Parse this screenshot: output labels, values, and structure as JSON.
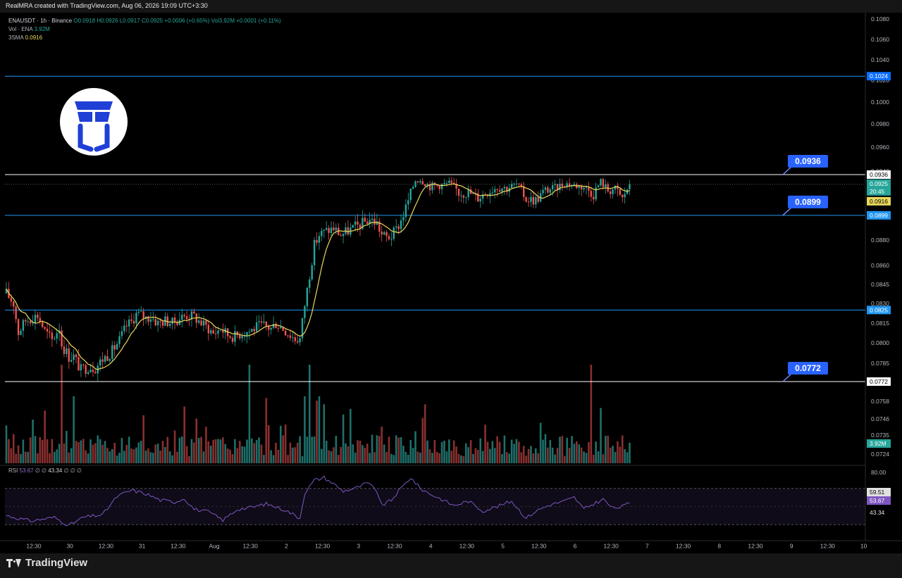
{
  "header": {
    "caption": "RealMRA created with TradingView.com, Aug 06, 2026 19:09 UTC+3:30"
  },
  "legend": {
    "symbol": "ENAUSDT · 1h · Binance",
    "ohlc": "O0.0918 H0.0926 L0.0917 C0.0925 +0.0006 (+0.65%)",
    "vol_summary": "Vol3.92M +0.0001 (+0.11%)",
    "vol_label": "Vol · ENA",
    "vol_value": "3.92M",
    "sma_label": "3SMA",
    "sma_value": "0.0916",
    "rsi_label": "RSI",
    "rsi_value": "53.67",
    "rsi_null1": "∅ ∅",
    "rsi_sma": "43.34",
    "rsi_null2": "∅ ∅ ∅"
  },
  "price_callouts": [
    "0.0936",
    "0.0899",
    "0.0772"
  ],
  "axis_badges": {
    "resistance_top": "0.1024",
    "resistance": "0.0936",
    "last_price": "0.0925",
    "countdown": "20:45",
    "sma": "0.0916",
    "support": "0.0899",
    "support_mid": "0.0825",
    "support_low": "0.0772",
    "volume": "3.92M",
    "rsi_upper": "59.51",
    "rsi_value": "53.67",
    "rsi_lower": "43.34",
    "rsi_top": "80.00"
  },
  "footer": {
    "brand": "TradingView"
  },
  "colors": {
    "up": "#26a69a",
    "down": "#ef5350",
    "sma": "#e8d85c",
    "rsi": "#7e57c2",
    "callout": "#2962ff",
    "support_line": "#2196f3",
    "resistance_line": "#ffffff"
  },
  "icons": {
    "logo": "cube-logo-icon",
    "brand": "tradingview-logo-icon"
  },
  "chart_data": {
    "type": "candlestick",
    "symbol": "ENAUSDT",
    "interval": "1h",
    "exchange": "Binance",
    "y_ticks": [
      "0.1080",
      "0.1060",
      "0.1040",
      "0.1020",
      "0.1000",
      "0.0980",
      "0.0960",
      "0.0940",
      "0.0920",
      "0.0900",
      "0.0880",
      "0.0860",
      "0.0845",
      "0.0830",
      "0.0815",
      "0.0800",
      "0.0785",
      "0.0772",
      "0.0758",
      "0.0746",
      "0.0735",
      "0.0724"
    ],
    "x_ticks": [
      "12:30",
      "30",
      "12:30",
      "31",
      "12:30",
      "Aug",
      "12:30",
      "2",
      "12:30",
      "3",
      "12:30",
      "4",
      "12:30",
      "5",
      "12:30",
      "6",
      "12:30",
      "7",
      "12:30",
      "8",
      "12:30",
      "9",
      "12:30",
      "10"
    ],
    "price_anchors": [
      [
        0,
        0.0838
      ],
      [
        3,
        0.083
      ],
      [
        5,
        0.0808
      ],
      [
        8,
        0.0817
      ],
      [
        13,
        0.0821
      ],
      [
        16,
        0.0809
      ],
      [
        19,
        0.0802
      ],
      [
        22,
        0.0812
      ],
      [
        23,
        0.0799
      ],
      [
        26,
        0.079
      ],
      [
        28,
        0.079
      ],
      [
        31,
        0.078
      ],
      [
        34,
        0.0783
      ],
      [
        37,
        0.0782
      ],
      [
        40,
        0.0788
      ],
      [
        44,
        0.0794
      ],
      [
        47,
        0.0802
      ],
      [
        50,
        0.0813
      ],
      [
        52,
        0.0816
      ],
      [
        54,
        0.0822
      ],
      [
        56,
        0.0821
      ],
      [
        58,
        0.0819
      ],
      [
        60,
        0.082
      ],
      [
        63,
        0.0815
      ],
      [
        66,
        0.0817
      ],
      [
        69,
        0.0815
      ],
      [
        72,
        0.0819
      ],
      [
        75,
        0.0821
      ],
      [
        78,
        0.082
      ],
      [
        81,
        0.0815
      ],
      [
        84,
        0.0811
      ],
      [
        86,
        0.0807
      ],
      [
        89,
        0.0811
      ],
      [
        92,
        0.0806
      ],
      [
        95,
        0.0805
      ],
      [
        98,
        0.0808
      ],
      [
        101,
        0.0809
      ],
      [
        104,
        0.0812
      ],
      [
        107,
        0.0813
      ],
      [
        110,
        0.0811
      ],
      [
        112,
        0.0815
      ],
      [
        115,
        0.0811
      ],
      [
        118,
        0.0806
      ],
      [
        120,
        0.0803
      ],
      [
        122,
        0.0803
      ],
      [
        124,
        0.0829
      ],
      [
        126,
        0.0853
      ],
      [
        128,
        0.0876
      ],
      [
        130,
        0.0884
      ],
      [
        133,
        0.0887
      ],
      [
        136,
        0.0889
      ],
      [
        139,
        0.0884
      ],
      [
        142,
        0.0887
      ],
      [
        145,
        0.089
      ],
      [
        148,
        0.0893
      ],
      [
        151,
        0.0896
      ],
      [
        154,
        0.0893
      ],
      [
        156,
        0.0884
      ],
      [
        158,
        0.0882
      ],
      [
        160,
        0.0883
      ],
      [
        162,
        0.0888
      ],
      [
        164,
        0.0895
      ],
      [
        166,
        0.0905
      ],
      [
        168,
        0.0916
      ],
      [
        170,
        0.093
      ],
      [
        172,
        0.0931
      ],
      [
        174,
        0.0927
      ],
      [
        176,
        0.0923
      ],
      [
        180,
        0.0924
      ],
      [
        184,
        0.0926
      ],
      [
        188,
        0.0917
      ],
      [
        192,
        0.0917
      ],
      [
        196,
        0.0913
      ],
      [
        200,
        0.0918
      ],
      [
        204,
        0.0922
      ],
      [
        208,
        0.0921
      ],
      [
        212,
        0.0925
      ],
      [
        216,
        0.0912
      ],
      [
        220,
        0.0911
      ],
      [
        224,
        0.0919
      ],
      [
        228,
        0.0921
      ],
      [
        232,
        0.0926
      ],
      [
        236,
        0.0924
      ],
      [
        240,
        0.0922
      ],
      [
        244,
        0.0916
      ],
      [
        247,
        0.0928
      ],
      [
        250,
        0.0919
      ],
      [
        253,
        0.092
      ],
      [
        256,
        0.0912
      ],
      [
        259,
        0.0925
      ]
    ],
    "last_close": 0.0925,
    "sma_period": 3,
    "horizontal_levels": [
      0.1024,
      0.0936,
      0.0899,
      0.0825,
      0.0772
    ],
    "volume_last": "3.92M",
    "rsi_levels": [
      70,
      30
    ],
    "rsi_last": 53.67,
    "rsi_sma_last": 43.34,
    "rsi_anchors": [
      [
        0,
        40
      ],
      [
        10,
        34
      ],
      [
        20,
        38
      ],
      [
        26,
        29
      ],
      [
        32,
        38
      ],
      [
        40,
        41
      ],
      [
        46,
        61
      ],
      [
        52,
        68
      ],
      [
        58,
        64
      ],
      [
        64,
        57
      ],
      [
        70,
        55
      ],
      [
        74,
        59
      ],
      [
        78,
        47
      ],
      [
        84,
        44
      ],
      [
        90,
        35
      ],
      [
        96,
        47
      ],
      [
        102,
        49
      ],
      [
        108,
        53
      ],
      [
        116,
        46
      ],
      [
        122,
        37
      ],
      [
        124,
        65
      ],
      [
        128,
        79
      ],
      [
        132,
        82
      ],
      [
        136,
        75
      ],
      [
        140,
        67
      ],
      [
        146,
        71
      ],
      [
        150,
        76
      ],
      [
        154,
        67
      ],
      [
        156,
        51
      ],
      [
        160,
        57
      ],
      [
        164,
        70
      ],
      [
        168,
        82
      ],
      [
        172,
        70
      ],
      [
        176,
        64
      ],
      [
        180,
        59
      ],
      [
        186,
        51
      ],
      [
        192,
        56
      ],
      [
        198,
        45
      ],
      [
        204,
        50
      ],
      [
        210,
        56
      ],
      [
        216,
        37
      ],
      [
        220,
        45
      ],
      [
        226,
        52
      ],
      [
        232,
        56
      ],
      [
        236,
        60
      ],
      [
        240,
        47
      ],
      [
        244,
        53
      ],
      [
        248,
        58
      ],
      [
        252,
        48
      ],
      [
        256,
        50
      ],
      [
        259,
        54
      ]
    ]
  }
}
